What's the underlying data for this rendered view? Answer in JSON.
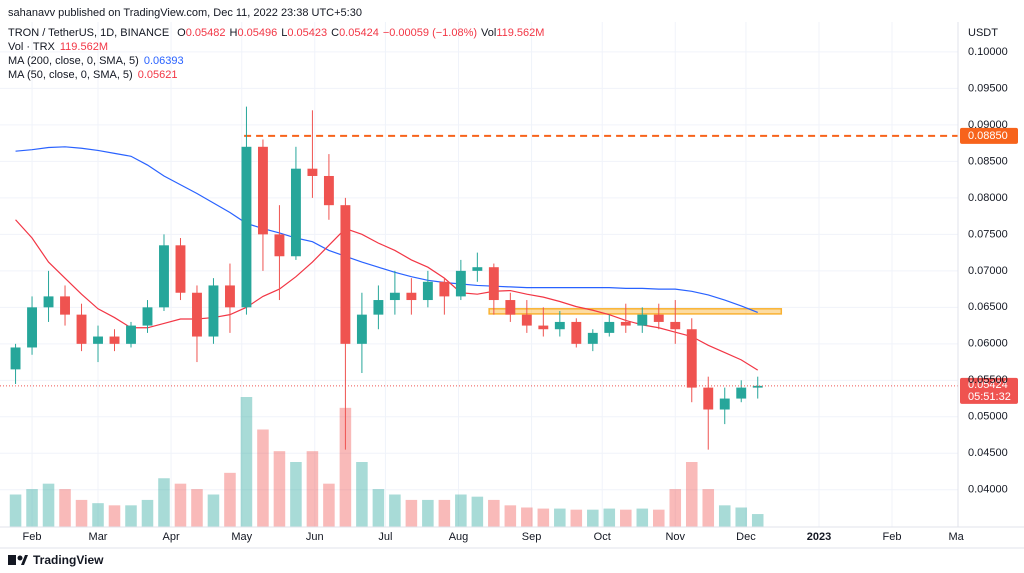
{
  "header": {
    "publisher": "sahanavv published on TradingView.com, Dec 11, 2022 23:38 UTC+5:30",
    "symbol": "TRON / TetherUS, 1D, BINANCE",
    "ohlc": [
      {
        "key": "O",
        "value": "0.05482"
      },
      {
        "key": "H",
        "value": "0.05496"
      },
      {
        "key": "L",
        "value": "0.05423"
      },
      {
        "key": "C",
        "value": "0.05424"
      }
    ],
    "change": "−0.00059 (−1.08%)",
    "vol_key": "Vol",
    "vol": "119.562M"
  },
  "footer": {
    "brand": "TradingView"
  },
  "chart_data": {
    "type": "candlestick",
    "y_axis_label": "USDT",
    "x": [
      24,
      31,
      38,
      45,
      52,
      59,
      66,
      73,
      80,
      87,
      94,
      101,
      108,
      115,
      122,
      129,
      136,
      143,
      150,
      157,
      164,
      171,
      178,
      185,
      192,
      199,
      206,
      213,
      220,
      227,
      234,
      241,
      248,
      255,
      262,
      269,
      276,
      283,
      290,
      297,
      304,
      311,
      318,
      325,
      332,
      339
    ],
    "open": [
      0.0565,
      0.0595,
      0.065,
      0.0665,
      0.064,
      0.06,
      0.061,
      0.06,
      0.0625,
      0.065,
      0.0735,
      0.067,
      0.061,
      0.068,
      0.065,
      0.087,
      0.075,
      0.072,
      0.084,
      0.083,
      0.079,
      0.06,
      0.064,
      0.066,
      0.067,
      0.066,
      0.0685,
      0.0665,
      0.07,
      0.0705,
      0.066,
      0.064,
      0.0625,
      0.062,
      0.063,
      0.06,
      0.0615,
      0.063,
      0.0625,
      0.064,
      0.063,
      0.062,
      0.054,
      0.051,
      0.0525,
      0.054
    ],
    "high": [
      0.06,
      0.0665,
      0.07,
      0.068,
      0.0655,
      0.0625,
      0.062,
      0.063,
      0.066,
      0.075,
      0.0745,
      0.068,
      0.069,
      0.071,
      0.0925,
      0.088,
      0.079,
      0.087,
      0.092,
      0.086,
      0.08,
      0.067,
      0.068,
      0.07,
      0.069,
      0.07,
      0.069,
      0.0715,
      0.0725,
      0.071,
      0.067,
      0.066,
      0.065,
      0.0645,
      0.0635,
      0.062,
      0.064,
      0.0655,
      0.065,
      0.0655,
      0.066,
      0.0635,
      0.0555,
      0.054,
      0.055,
      0.0555
    ],
    "low": [
      0.0545,
      0.0585,
      0.063,
      0.0625,
      0.059,
      0.0575,
      0.059,
      0.0595,
      0.0615,
      0.0645,
      0.066,
      0.0575,
      0.06,
      0.0615,
      0.064,
      0.07,
      0.066,
      0.0715,
      0.08,
      0.077,
      0.0455,
      0.056,
      0.062,
      0.064,
      0.064,
      0.065,
      0.064,
      0.066,
      0.0685,
      0.064,
      0.063,
      0.0615,
      0.061,
      0.061,
      0.0595,
      0.059,
      0.061,
      0.0615,
      0.0615,
      0.062,
      0.06,
      0.052,
      0.0455,
      0.049,
      0.052,
      0.0525
    ],
    "close": [
      0.0595,
      0.065,
      0.0665,
      0.064,
      0.06,
      0.061,
      0.06,
      0.0625,
      0.065,
      0.0735,
      0.067,
      0.061,
      0.068,
      0.065,
      0.087,
      0.075,
      0.072,
      0.084,
      0.083,
      0.079,
      0.06,
      0.064,
      0.066,
      0.067,
      0.066,
      0.0685,
      0.0665,
      0.07,
      0.0705,
      0.066,
      0.064,
      0.0625,
      0.062,
      0.063,
      0.06,
      0.0615,
      0.063,
      0.0625,
      0.064,
      0.063,
      0.062,
      0.054,
      0.051,
      0.0525,
      0.054,
      0.05424
    ],
    "up_color": "#26a69a",
    "down_color": "#ef5350",
    "volume": {
      "name": "Vol · TRX",
      "last_label": "119.562M",
      "values": [
        300,
        350,
        400,
        350,
        250,
        220,
        200,
        200,
        250,
        450,
        400,
        350,
        300,
        500,
        1200,
        900,
        700,
        600,
        700,
        400,
        1100,
        600,
        350,
        300,
        250,
        250,
        250,
        300,
        280,
        250,
        200,
        180,
        170,
        170,
        160,
        160,
        170,
        160,
        170,
        160,
        350,
        600,
        350,
        200,
        180,
        119.562
      ]
    },
    "series": [
      {
        "name": "MA (200, close, 0, SMA, 5)",
        "color": "#2962ff",
        "last_label": "0.06393",
        "values": [
          0.0864,
          0.0866,
          0.0869,
          0.087,
          0.0868,
          0.0865,
          0.0861,
          0.0857,
          0.0845,
          0.083,
          0.0818,
          0.0806,
          0.0793,
          0.078,
          0.0765,
          0.0758,
          0.0752,
          0.0745,
          0.074,
          0.0728,
          0.072,
          0.0712,
          0.0705,
          0.0698,
          0.0692,
          0.0687,
          0.0684,
          0.0682,
          0.068,
          0.0679,
          0.0678,
          0.0677,
          0.0677,
          0.0677,
          0.0677,
          0.0677,
          0.0677,
          0.0676,
          0.0676,
          0.0675,
          0.0675,
          0.0672,
          0.0667,
          0.066,
          0.0652,
          0.0643
        ]
      },
      {
        "name": "MA (50, close, 0, SMA, 5)",
        "color": "#f23645",
        "last_label": "0.05621",
        "values": [
          0.077,
          0.0745,
          0.0712,
          0.069,
          0.0668,
          0.0648,
          0.0636,
          0.0622,
          0.0622,
          0.0628,
          0.0634,
          0.0634,
          0.0636,
          0.064,
          0.065,
          0.0665,
          0.0675,
          0.0692,
          0.0712,
          0.0735,
          0.0758,
          0.075,
          0.0738,
          0.0728,
          0.0715,
          0.0705,
          0.069,
          0.067,
          0.0668,
          0.0672,
          0.0673,
          0.0668,
          0.0664,
          0.0658,
          0.0651,
          0.0646,
          0.064,
          0.0632,
          0.0626,
          0.0622,
          0.0616,
          0.061,
          0.0598,
          0.0588,
          0.0578,
          0.0564
        ]
      }
    ],
    "last_price": 0.05424,
    "countdown": "05:51:32",
    "level": {
      "value": 0.0885,
      "label": "0.08850",
      "start": 121,
      "color": "#f7631b"
    },
    "zone": {
      "ylim": [
        0.0641,
        0.0648
      ],
      "xlim": [
        225,
        349
      ],
      "color": "#f9b233"
    },
    "xlim": [
      17.4,
      424
    ],
    "ylim": [
      0.0349,
      0.1041
    ],
    "yticks": [
      {
        "value": 0.1,
        "label": "0.10000"
      },
      {
        "value": 0.095,
        "label": "0.09500"
      },
      {
        "value": 0.09,
        "label": "0.09000"
      },
      {
        "value": 0.085,
        "label": "0.08500"
      },
      {
        "value": 0.08,
        "label": "0.08000"
      },
      {
        "value": 0.075,
        "label": "0.07500"
      },
      {
        "value": 0.07,
        "label": "0.07000"
      },
      {
        "value": 0.065,
        "label": "0.06500"
      },
      {
        "value": 0.06,
        "label": "0.06000"
      },
      {
        "value": 0.055,
        "label": "0.05500"
      },
      {
        "value": 0.05,
        "label": "0.05000"
      },
      {
        "value": 0.045,
        "label": "0.04500"
      },
      {
        "value": 0.04,
        "label": "0.04000"
      }
    ],
    "xticks": [
      {
        "value": 31,
        "label": "Feb"
      },
      {
        "value": 59,
        "label": "Mar"
      },
      {
        "value": 90,
        "label": "Apr"
      },
      {
        "value": 120,
        "label": "May"
      },
      {
        "value": 151,
        "label": "Jun"
      },
      {
        "value": 181,
        "label": "Jul"
      },
      {
        "value": 212,
        "label": "Aug"
      },
      {
        "value": 243,
        "label": "Sep"
      },
      {
        "value": 273,
        "label": "Oct"
      },
      {
        "value": 304,
        "label": "Nov"
      },
      {
        "value": 334,
        "label": "Dec"
      },
      {
        "value": 365,
        "label": "2023"
      },
      {
        "value": 396,
        "label": "Feb"
      },
      {
        "value": 424,
        "label": "Mar"
      }
    ]
  }
}
